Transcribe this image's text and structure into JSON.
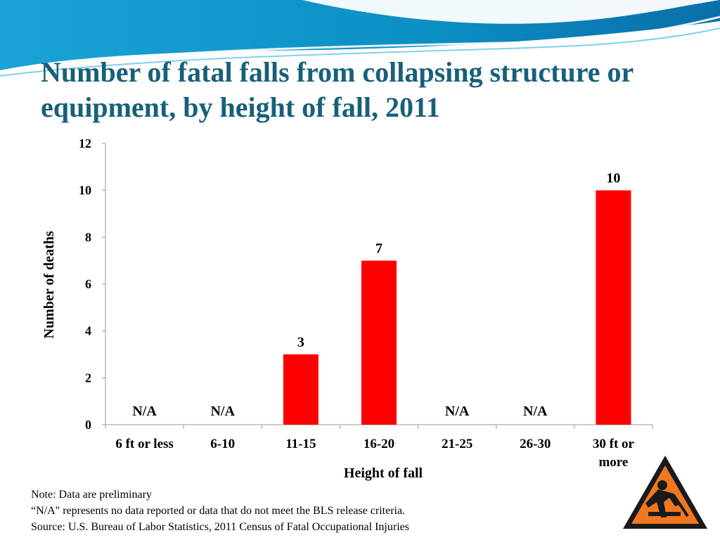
{
  "slide": {
    "title": "Number of fatal falls from collapsing structure or equipment, by height of fall, 2011",
    "colors": {
      "title": "#17607a",
      "bar": "#ff0000",
      "banner": "#0b8fc4"
    },
    "notes": [
      "Note: Data are preliminary",
      "“N/A\" represents no data reported or data that do not meet the BLS release criteria.",
      "Source: U.S. Bureau of Labor Statistics, 2011 Census of Fatal Occupational Injuries"
    ],
    "icon": "warning-worker-icon"
  },
  "chart_data": {
    "type": "bar",
    "categories": [
      "6 ft or less",
      "6-10",
      "11-15",
      "16-20",
      "21-25",
      "26-30",
      "30 ft or more"
    ],
    "category_lines": [
      [
        "6 ft or less"
      ],
      [
        "6-10"
      ],
      [
        "11-15"
      ],
      [
        "16-20"
      ],
      [
        "21-25"
      ],
      [
        "26-30"
      ],
      [
        "30 ft or",
        "more"
      ]
    ],
    "values": [
      null,
      null,
      3,
      7,
      null,
      null,
      10
    ],
    "data_labels": [
      "N/A",
      "N/A",
      "3",
      "7",
      "N/A",
      "N/A",
      "10"
    ],
    "xlabel": "Height of fall",
    "ylabel": "Number of deaths",
    "ylim": [
      0,
      12
    ],
    "yticks": [
      0,
      2,
      4,
      6,
      8,
      10,
      12
    ],
    "grid": false,
    "bar_color": "#ff0000"
  }
}
